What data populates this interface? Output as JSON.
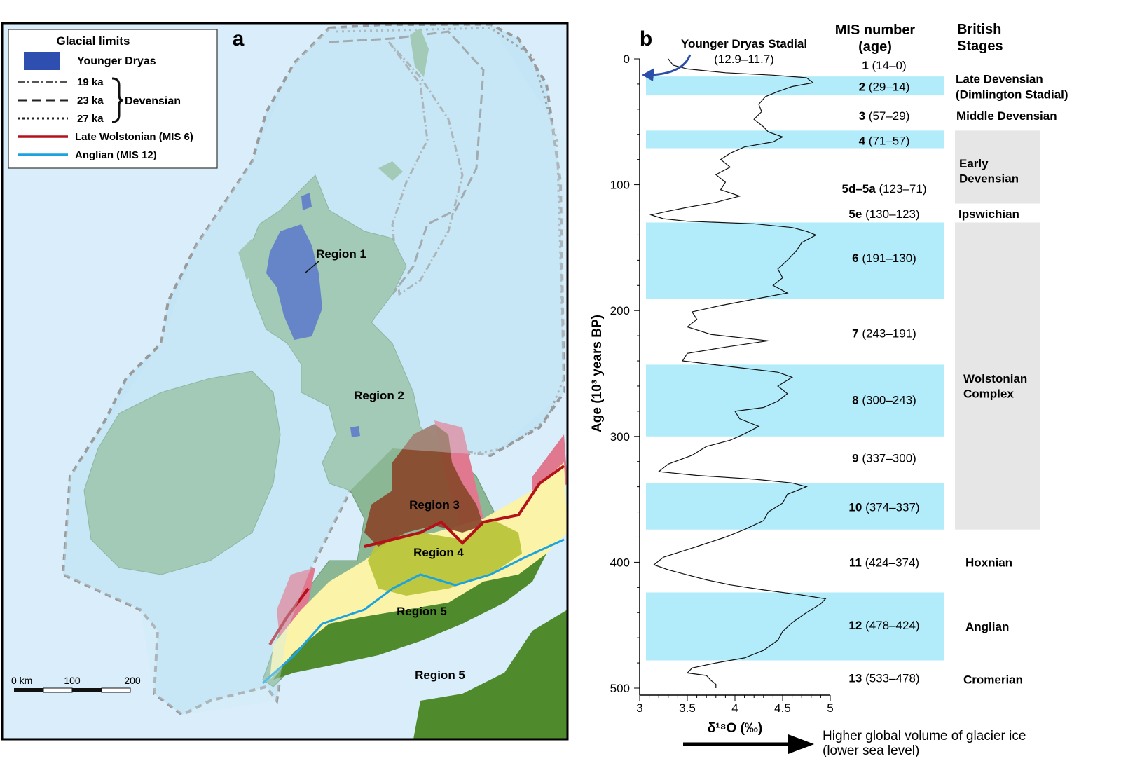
{
  "panel_a": {
    "label": "a",
    "legend": {
      "title": "Glacial limits",
      "younger_dryas": "Younger Dryas",
      "line_19": "19 ka",
      "line_23": "23 ka",
      "line_27": "27 ka",
      "devensian": "Devensian",
      "late_wolstonian": "Late Wolstonian (MIS 6)",
      "anglian": "Anglian (MIS 12)"
    },
    "regions": {
      "r1": "Region 1",
      "r2": "Region 2",
      "r3": "Region 3",
      "r4": "Region 4",
      "r5a": "Region 5",
      "r5b": "Region 5"
    },
    "scale": {
      "t0": "0 km",
      "t100": "100",
      "t200": "200"
    },
    "colors": {
      "sea": "#cfe9f7",
      "ice_sheet": "#bfe3f5",
      "land": "#7fb08a",
      "younger_dryas": "#2f4fb0",
      "region3": "#8a4a2e",
      "region4": "#b9c43a",
      "region5": "#4f8a2c",
      "late_wolstonian": "#b3121b",
      "anglian": "#1aa3e0",
      "pink": "#e0788f",
      "yellow": "#fbf3a8"
    }
  },
  "panel_b": {
    "label": "b",
    "ytitle": "Age (10³ years BP)",
    "xtitle": "δ¹⁸O (‰)",
    "yticks": [
      "0",
      "100",
      "200",
      "300",
      "400",
      "500"
    ],
    "xticks": [
      "3",
      "3.5",
      "4",
      "4.5",
      "5"
    ],
    "annotation_title": "Younger Dryas Stadial",
    "annotation_range": "(12.9–11.7)",
    "mis_header_1": "MIS number",
    "mis_header_2": "(age)",
    "stages_header_1": "British",
    "stages_header_2": "Stages",
    "arrow_label_1": "Higher global volume of glacier ice",
    "arrow_label_2": "(lower sea level)",
    "mis": [
      {
        "num": "1",
        "range": "(14–0)"
      },
      {
        "num": "2",
        "range": "(29–14)"
      },
      {
        "num": "3",
        "range": "(57–29)"
      },
      {
        "num": "4",
        "range": "(71–57)"
      },
      {
        "num": "5d–5a",
        "range": "(123–71)"
      },
      {
        "num": "5e",
        "range": "(130–123)"
      },
      {
        "num": "6",
        "range": "(191–130)"
      },
      {
        "num": "7",
        "range": "(243–191)"
      },
      {
        "num": "8",
        "range": "(300–243)"
      },
      {
        "num": "9",
        "range": "(337–300)"
      },
      {
        "num": "10",
        "range": "(374–337)"
      },
      {
        "num": "11",
        "range": "(424–374)"
      },
      {
        "num": "12",
        "range": "(478–424)"
      },
      {
        "num": "13",
        "range": "(533–478)"
      }
    ],
    "stages": [
      {
        "l1": "Late Devensian",
        "l2": "(Dimlington Stadial)"
      },
      {
        "l1": "Middle Devensian",
        "l2": ""
      },
      {
        "l1": "Early",
        "l2": "Devensian"
      },
      {
        "l1": "Ipswichian",
        "l2": ""
      },
      {
        "l1": "Wolstonian",
        "l2": "Complex"
      },
      {
        "l1": "Hoxnian",
        "l2": ""
      },
      {
        "l1": "Anglian",
        "l2": ""
      },
      {
        "l1": "Cromerian",
        "l2": ""
      }
    ],
    "colors": {
      "glacial_band": "#b2ebf9",
      "stage_box": "#e6e6e6",
      "curve": "#111111",
      "arrow": "#2b4fa8"
    }
  },
  "chart_data": {
    "type": "line",
    "xlabel": "δ¹⁸O (‰)",
    "ylabel": "Age (10³ years BP)",
    "xlim": [
      3,
      5
    ],
    "ylim": [
      0,
      500
    ],
    "y_inverted": true,
    "glacial_bands": [
      [
        14,
        29
      ],
      [
        57,
        71
      ],
      [
        130,
        191
      ],
      [
        243,
        300
      ],
      [
        337,
        374
      ],
      [
        424,
        478
      ]
    ],
    "series": [
      {
        "points": [
          [
            3.3,
            0
          ],
          [
            3.35,
            5
          ],
          [
            3.5,
            8
          ],
          [
            3.9,
            11
          ],
          [
            4.4,
            13
          ],
          [
            4.75,
            15
          ],
          [
            4.82,
            19
          ],
          [
            4.6,
            22
          ],
          [
            4.45,
            26
          ],
          [
            4.32,
            30
          ],
          [
            4.25,
            36
          ],
          [
            4.28,
            42
          ],
          [
            4.2,
            48
          ],
          [
            4.3,
            54
          ],
          [
            4.35,
            58
          ],
          [
            4.5,
            62
          ],
          [
            4.4,
            66
          ],
          [
            4.1,
            70
          ],
          [
            3.95,
            75
          ],
          [
            3.85,
            80
          ],
          [
            3.95,
            86
          ],
          [
            3.8,
            92
          ],
          [
            3.9,
            98
          ],
          [
            3.85,
            104
          ],
          [
            4.05,
            109
          ],
          [
            3.8,
            114
          ],
          [
            3.5,
            118
          ],
          [
            3.3,
            121
          ],
          [
            3.12,
            124
          ],
          [
            3.25,
            127
          ],
          [
            3.5,
            129
          ],
          [
            4.2,
            131
          ],
          [
            4.6,
            134
          ],
          [
            4.75,
            137
          ],
          [
            4.85,
            140
          ],
          [
            4.7,
            146
          ],
          [
            4.65,
            152
          ],
          [
            4.55,
            160
          ],
          [
            4.45,
            167
          ],
          [
            4.5,
            174
          ],
          [
            4.4,
            180
          ],
          [
            4.55,
            186
          ],
          [
            4.2,
            191
          ],
          [
            3.85,
            196
          ],
          [
            3.55,
            201
          ],
          [
            3.6,
            207
          ],
          [
            3.5,
            213
          ],
          [
            3.75,
            219
          ],
          [
            4.35,
            224
          ],
          [
            3.9,
            229
          ],
          [
            3.5,
            234
          ],
          [
            3.45,
            240
          ],
          [
            4.0,
            245
          ],
          [
            4.45,
            249
          ],
          [
            4.6,
            253
          ],
          [
            4.45,
            260
          ],
          [
            4.55,
            266
          ],
          [
            4.45,
            272
          ],
          [
            4.3,
            277
          ],
          [
            4.0,
            280
          ],
          [
            4.05,
            286
          ],
          [
            4.25,
            292
          ],
          [
            4.1,
            298
          ],
          [
            3.95,
            303
          ],
          [
            3.7,
            308
          ],
          [
            3.55,
            315
          ],
          [
            3.3,
            322
          ],
          [
            3.2,
            328
          ],
          [
            3.6,
            331
          ],
          [
            4.2,
            334
          ],
          [
            4.6,
            337
          ],
          [
            4.75,
            340
          ],
          [
            4.55,
            346
          ],
          [
            4.5,
            353
          ],
          [
            4.35,
            360
          ],
          [
            4.3,
            367
          ],
          [
            4.1,
            374
          ],
          [
            3.9,
            380
          ],
          [
            3.7,
            385
          ],
          [
            3.5,
            390
          ],
          [
            3.25,
            396
          ],
          [
            3.15,
            402
          ],
          [
            3.3,
            406
          ],
          [
            3.5,
            410
          ],
          [
            3.7,
            414
          ],
          [
            3.95,
            418
          ],
          [
            4.3,
            422
          ],
          [
            4.7,
            426
          ],
          [
            4.95,
            429
          ],
          [
            4.9,
            433
          ],
          [
            4.75,
            440
          ],
          [
            4.6,
            448
          ],
          [
            4.5,
            455
          ],
          [
            4.45,
            462
          ],
          [
            4.3,
            470
          ],
          [
            4.1,
            476
          ],
          [
            3.8,
            480
          ],
          [
            3.55,
            484
          ],
          [
            3.5,
            488
          ],
          [
            3.7,
            490
          ],
          [
            3.75,
            494
          ],
          [
            3.8,
            497
          ],
          [
            3.8,
            500
          ]
        ]
      }
    ]
  }
}
